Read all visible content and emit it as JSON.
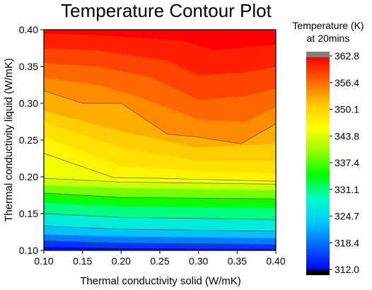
{
  "chart_data": {
    "type": "contour",
    "title": "Temperature Contour Plot",
    "xlabel": "Thermal conductivity solid (W/mK)",
    "ylabel": "Thermal conductivity liquid (W/mK)",
    "xlim": [
      0.1,
      0.4
    ],
    "ylim": [
      0.1,
      0.4
    ],
    "x_ticks": [
      "0.10",
      "0.15",
      "0.20",
      "0.25",
      "0.30",
      "0.35",
      "0.40"
    ],
    "y_ticks": [
      "0.10",
      "0.15",
      "0.20",
      "0.25",
      "0.30",
      "0.35",
      "0.40"
    ],
    "colorbar": {
      "title_line1": "Temperature (K)",
      "title_line2": "at 20mins",
      "range": [
        312.0,
        362.8
      ],
      "ticks": [
        "362.8",
        "356.4",
        "350.1",
        "343.8",
        "337.4",
        "331.1",
        "324.7",
        "318.4",
        "312.0"
      ],
      "colors": [
        "#000000",
        "#0000ff",
        "#0064ff",
        "#00c8ff",
        "#00ffc8",
        "#00ff00",
        "#96ff00",
        "#ffff00",
        "#ffc800",
        "#ff6400",
        "#ff0000",
        "#808080"
      ]
    },
    "contours": [
      {
        "level": 314.0,
        "points": [
          [
            0.1,
            0.105
          ],
          [
            0.2,
            0.103
          ],
          [
            0.4,
            0.102
          ]
        ]
      },
      {
        "level": 318.0,
        "points": [
          [
            0.1,
            0.113
          ],
          [
            0.2,
            0.11
          ],
          [
            0.4,
            0.108
          ]
        ]
      },
      {
        "level": 322.0,
        "points": [
          [
            0.1,
            0.122
          ],
          [
            0.2,
            0.119
          ],
          [
            0.4,
            0.117
          ]
        ]
      },
      {
        "level": 326.0,
        "points": [
          [
            0.1,
            0.133
          ],
          [
            0.2,
            0.129
          ],
          [
            0.4,
            0.126
          ]
        ]
      },
      {
        "level": 330.0,
        "points": [
          [
            0.1,
            0.15
          ],
          [
            0.2,
            0.145
          ],
          [
            0.4,
            0.142
          ]
        ]
      },
      {
        "level": 334.0,
        "points": [
          [
            0.1,
            0.165
          ],
          [
            0.2,
            0.16
          ],
          [
            0.4,
            0.158
          ]
        ]
      },
      {
        "level": 338.0,
        "points": [
          [
            0.1,
            0.178
          ],
          [
            0.2,
            0.172
          ],
          [
            0.4,
            0.17
          ]
        ]
      },
      {
        "level": 342.0,
        "points": [
          [
            0.1,
            0.189
          ],
          [
            0.2,
            0.185
          ],
          [
            0.4,
            0.182
          ]
        ]
      },
      {
        "level": 344.0,
        "points": [
          [
            0.1,
            0.198
          ],
          [
            0.2,
            0.193
          ],
          [
            0.4,
            0.19
          ]
        ]
      },
      {
        "level": 346.0,
        "points": [
          [
            0.1,
            0.232
          ],
          [
            0.19,
            0.199
          ],
          [
            0.25,
            0.198
          ],
          [
            0.4,
            0.194
          ]
        ]
      },
      {
        "level": 348.0,
        "points": [
          [
            0.1,
            0.255
          ],
          [
            0.2,
            0.215
          ],
          [
            0.3,
            0.208
          ],
          [
            0.4,
            0.205
          ]
        ]
      },
      {
        "level": 350.0,
        "points": [
          [
            0.1,
            0.275
          ],
          [
            0.2,
            0.24
          ],
          [
            0.3,
            0.222
          ],
          [
            0.4,
            0.222
          ]
        ]
      },
      {
        "level": 352.0,
        "points": [
          [
            0.1,
            0.29
          ],
          [
            0.2,
            0.262
          ],
          [
            0.3,
            0.24
          ],
          [
            0.4,
            0.245
          ]
        ]
      },
      {
        "level": 354.0,
        "points": [
          [
            0.1,
            0.317
          ],
          [
            0.15,
            0.3
          ],
          [
            0.2,
            0.3
          ],
          [
            0.26,
            0.258
          ],
          [
            0.3,
            0.254
          ],
          [
            0.355,
            0.245
          ],
          [
            0.4,
            0.272
          ]
        ]
      },
      {
        "level": 356.0,
        "points": [
          [
            0.1,
            0.335
          ],
          [
            0.17,
            0.325
          ],
          [
            0.22,
            0.31
          ],
          [
            0.3,
            0.278
          ],
          [
            0.36,
            0.275
          ],
          [
            0.4,
            0.295
          ]
        ]
      },
      {
        "level": 358.0,
        "points": [
          [
            0.1,
            0.355
          ],
          [
            0.17,
            0.35
          ],
          [
            0.24,
            0.335
          ],
          [
            0.3,
            0.305
          ],
          [
            0.36,
            0.31
          ],
          [
            0.4,
            0.32
          ]
        ]
      },
      {
        "level": 360.0,
        "points": [
          [
            0.1,
            0.375
          ],
          [
            0.17,
            0.372
          ],
          [
            0.26,
            0.358
          ],
          [
            0.3,
            0.338
          ],
          [
            0.36,
            0.342
          ],
          [
            0.4,
            0.35
          ]
        ]
      },
      {
        "level": 362.0,
        "points": [
          [
            0.1,
            0.395
          ],
          [
            0.17,
            0.393
          ],
          [
            0.28,
            0.385
          ],
          [
            0.32,
            0.372
          ],
          [
            0.4,
            0.38
          ]
        ]
      }
    ],
    "outlined_levels": [
      314.0,
      318.0,
      326.0,
      330.0,
      338.0,
      344.0,
      346.0,
      354.0
    ]
  }
}
